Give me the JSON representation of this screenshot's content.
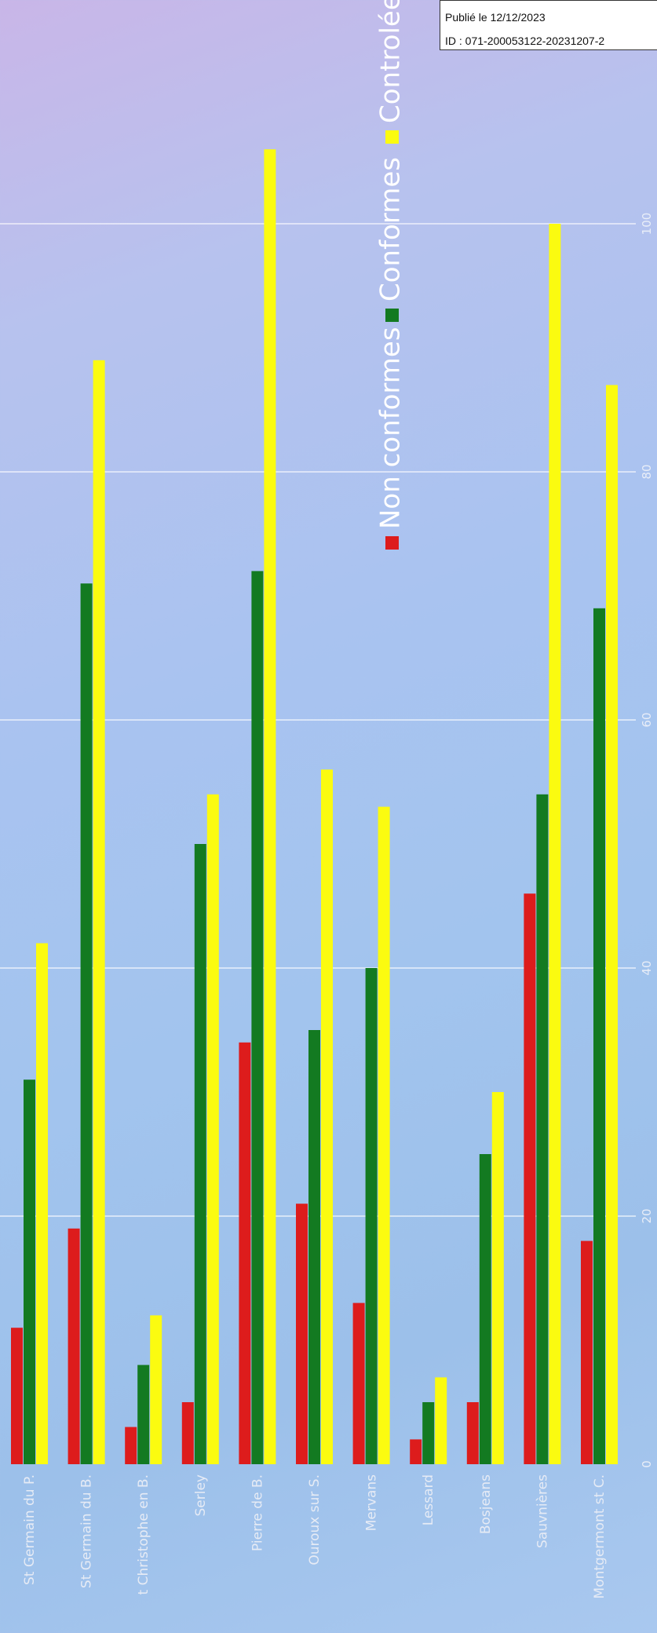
{
  "stamp": {
    "published": "Publié le 12/12/2023",
    "id": "ID : 071-200053122-20231207-2"
  },
  "chart_data": {
    "type": "bar",
    "orientation": "rotated",
    "categories": [
      "St Germain du P.",
      "St Germain du B.",
      "t Christophe en B.",
      "Serley",
      "Pierre de B.",
      "Ouroux sur S.",
      "Mervans",
      "Lessard",
      "Bosjeans",
      "Sauvnières",
      "Montgermont st C."
    ],
    "series": [
      {
        "name": "Non conformes",
        "color": "#dd1c1c",
        "values": [
          11,
          19,
          3,
          5,
          34,
          21,
          13,
          2,
          5,
          46,
          18
        ]
      },
      {
        "name": "Conformes",
        "color": "#137a21",
        "values": [
          31,
          71,
          8,
          50,
          72,
          35,
          40,
          5,
          25,
          54,
          69
        ]
      },
      {
        "name": "Controlées",
        "color": "#fbfb10",
        "values": [
          42,
          89,
          12,
          54,
          106,
          56,
          53,
          7,
          30,
          100,
          87
        ]
      }
    ],
    "ticks": [
      0,
      20,
      40,
      60,
      80,
      100
    ],
    "ylim": [
      0,
      110
    ],
    "grid": true,
    "legend": "top"
  }
}
